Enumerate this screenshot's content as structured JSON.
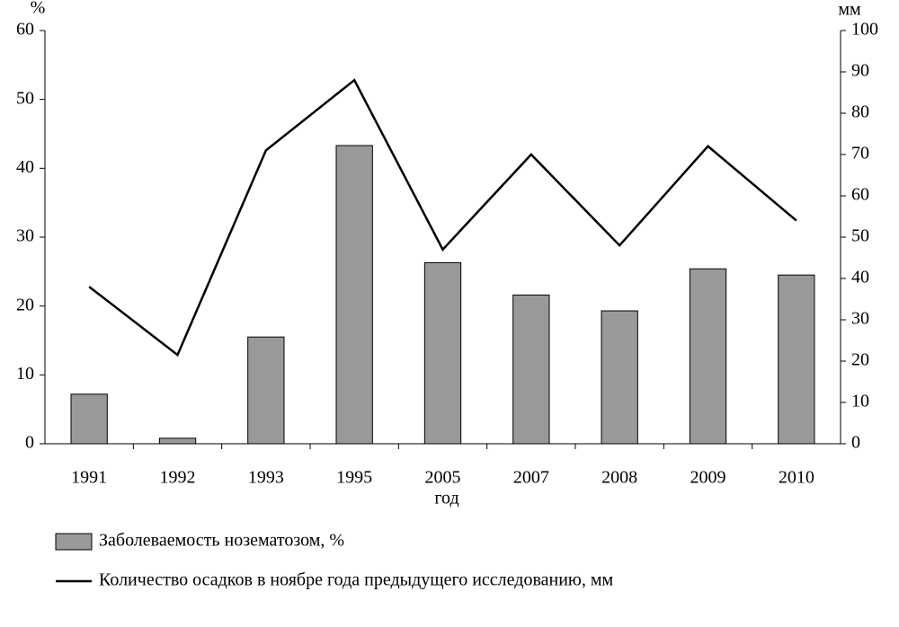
{
  "chart_data": {
    "type": "bar_line",
    "x_label": "год",
    "y_label": "%",
    "y2_label": "мм",
    "categories": [
      "1991",
      "1992",
      "1993",
      "1995",
      "2005",
      "2007",
      "2008",
      "2009",
      "2010"
    ],
    "series": [
      {
        "name": "Заболеваемость нозематозом, %",
        "type": "bar",
        "color": "#999999",
        "values": [
          7.2,
          0.8,
          15.5,
          43.3,
          26.3,
          21.6,
          19.3,
          25.4,
          24.5
        ]
      },
      {
        "name": "Количество осадков в ноябре года предыдущего исследованию, мм",
        "type": "line",
        "axis": "y2",
        "color": "#000000",
        "values": [
          38,
          21.5,
          71,
          88,
          47,
          70,
          48,
          72,
          54
        ]
      }
    ],
    "ylim": [
      0,
      60
    ],
    "yticks": [
      0,
      10,
      20,
      30,
      40,
      50,
      60
    ],
    "y2lim": [
      0,
      100
    ],
    "y2ticks": [
      0,
      10,
      20,
      30,
      40,
      50,
      60,
      70,
      80,
      90,
      100
    ],
    "grid": false,
    "legend": "bottom"
  }
}
